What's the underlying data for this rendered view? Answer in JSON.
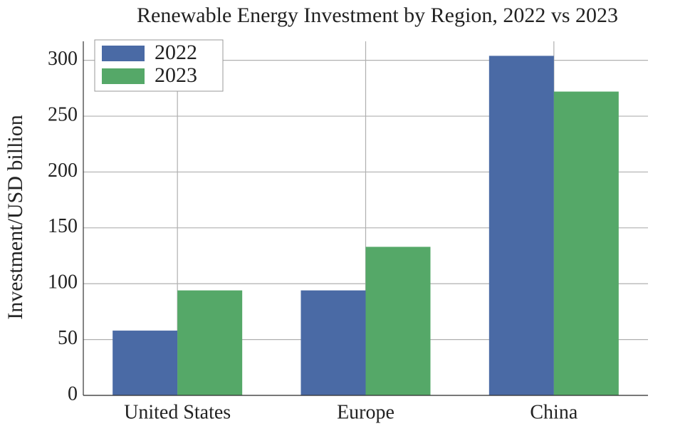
{
  "chart_data": {
    "type": "bar",
    "title": "Renewable Energy Investment by Region, 2022 vs 2023",
    "y_label": "Investment/USD billion",
    "categories": [
      "United States",
      "Europe",
      "China"
    ],
    "series": [
      {
        "name": "2022",
        "color": "#4a6aa5",
        "values": [
          58,
          94,
          304
        ]
      },
      {
        "name": "2023",
        "color": "#55a868",
        "values": [
          94,
          133,
          272
        ]
      }
    ],
    "ylim": [
      0,
      317
    ],
    "yticks": [
      0,
      50,
      100,
      150,
      200,
      250,
      300
    ],
    "grid": true,
    "legend": "upper-left"
  }
}
